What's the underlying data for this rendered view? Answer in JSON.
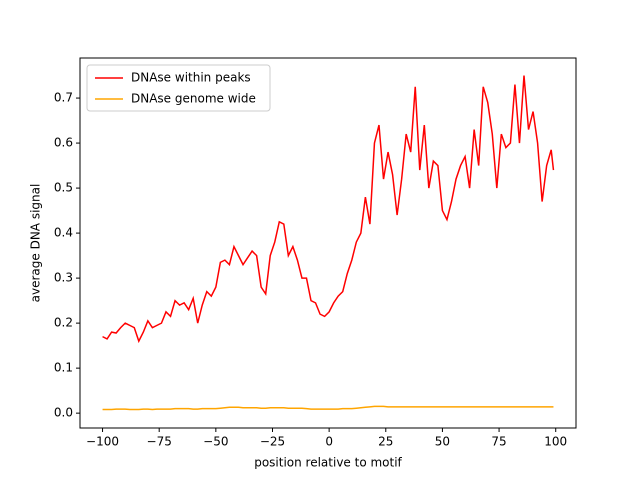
{
  "chart_data": {
    "type": "line",
    "x_label": "position relative to motif",
    "y_label": "average DNA signal",
    "x": [
      -100,
      -98,
      -96,
      -94,
      -92,
      -90,
      -88,
      -86,
      -84,
      -82,
      -80,
      -78,
      -76,
      -74,
      -72,
      -70,
      -68,
      -66,
      -64,
      -62,
      -60,
      -58,
      -56,
      -54,
      -52,
      -50,
      -48,
      -46,
      -44,
      -42,
      -40,
      -38,
      -36,
      -34,
      -32,
      -30,
      -28,
      -26,
      -24,
      -22,
      -20,
      -18,
      -16,
      -14,
      -12,
      -10,
      -8,
      -6,
      -4,
      -2,
      0,
      2,
      4,
      6,
      8,
      10,
      12,
      14,
      16,
      18,
      20,
      22,
      24,
      26,
      28,
      30,
      32,
      34,
      36,
      38,
      40,
      42,
      44,
      46,
      48,
      50,
      52,
      54,
      56,
      58,
      60,
      62,
      64,
      66,
      68,
      70,
      72,
      74,
      76,
      78,
      80,
      82,
      84,
      86,
      88,
      90,
      92,
      94,
      96,
      98,
      99
    ],
    "series": [
      {
        "name": "DNAse within peaks",
        "color": "#ff0000",
        "values": [
          0.17,
          0.165,
          0.18,
          0.178,
          0.19,
          0.2,
          0.195,
          0.19,
          0.16,
          0.18,
          0.205,
          0.19,
          0.195,
          0.2,
          0.225,
          0.215,
          0.25,
          0.24,
          0.245,
          0.23,
          0.255,
          0.2,
          0.24,
          0.27,
          0.26,
          0.28,
          0.335,
          0.34,
          0.33,
          0.37,
          0.35,
          0.33,
          0.345,
          0.36,
          0.35,
          0.28,
          0.265,
          0.35,
          0.38,
          0.425,
          0.42,
          0.35,
          0.37,
          0.34,
          0.3,
          0.3,
          0.25,
          0.245,
          0.22,
          0.215,
          0.225,
          0.245,
          0.26,
          0.27,
          0.31,
          0.34,
          0.38,
          0.4,
          0.48,
          0.42,
          0.6,
          0.64,
          0.52,
          0.58,
          0.53,
          0.44,
          0.52,
          0.62,
          0.58,
          0.725,
          0.54,
          0.64,
          0.5,
          0.56,
          0.55,
          0.45,
          0.43,
          0.47,
          0.52,
          0.55,
          0.57,
          0.5,
          0.63,
          0.55,
          0.725,
          0.69,
          0.62,
          0.5,
          0.62,
          0.59,
          0.6,
          0.73,
          0.6,
          0.75,
          0.63,
          0.67,
          0.6,
          0.47,
          0.55,
          0.585,
          0.54
        ]
      },
      {
        "name": "DNAse genome wide",
        "color": "#ffa500",
        "values": [
          0.008,
          0.008,
          0.008,
          0.009,
          0.009,
          0.009,
          0.008,
          0.008,
          0.008,
          0.009,
          0.009,
          0.008,
          0.009,
          0.009,
          0.009,
          0.009,
          0.01,
          0.01,
          0.01,
          0.01,
          0.009,
          0.009,
          0.01,
          0.01,
          0.01,
          0.01,
          0.011,
          0.012,
          0.013,
          0.013,
          0.013,
          0.012,
          0.012,
          0.012,
          0.012,
          0.011,
          0.011,
          0.012,
          0.012,
          0.012,
          0.012,
          0.011,
          0.011,
          0.011,
          0.011,
          0.01,
          0.009,
          0.009,
          0.009,
          0.009,
          0.009,
          0.009,
          0.009,
          0.01,
          0.01,
          0.01,
          0.011,
          0.012,
          0.013,
          0.014,
          0.015,
          0.015,
          0.015,
          0.014,
          0.014,
          0.014,
          0.014,
          0.014,
          0.014,
          0.014,
          0.014,
          0.014,
          0.014,
          0.014,
          0.014,
          0.014,
          0.014,
          0.014,
          0.014,
          0.014,
          0.014,
          0.014,
          0.014,
          0.014,
          0.014,
          0.014,
          0.014,
          0.014,
          0.014,
          0.014,
          0.014,
          0.014,
          0.014,
          0.014,
          0.014,
          0.014,
          0.014,
          0.014,
          0.014,
          0.014,
          0.014
        ]
      }
    ],
    "xlim": [
      -109.95,
      108.95
    ],
    "ylim": [
      -0.033,
      0.789
    ],
    "xticks": [
      {
        "value": -100,
        "label": "−100"
      },
      {
        "value": -75,
        "label": "−75"
      },
      {
        "value": -50,
        "label": "−50"
      },
      {
        "value": -25,
        "label": "−25"
      },
      0,
      25,
      50,
      75,
      100
    ],
    "yticks": [
      {
        "value": 0,
        "label": "0.0"
      },
      0.1,
      0.2,
      0.3,
      0.4,
      0.5,
      0.6,
      0.7
    ],
    "legend": "upper left"
  }
}
